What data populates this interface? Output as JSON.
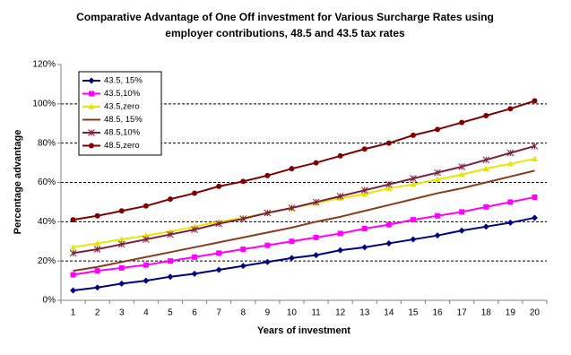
{
  "chart_data": {
    "type": "line",
    "title": [
      "Comparative Advantage of One Off investment for Various Surcharge Rates using",
      "employer contributions, 48.5 and 43.5 tax rates"
    ],
    "x_label": "Years of investment",
    "y_label": "Percentage advantage",
    "categories": [
      "1",
      "2",
      "3",
      "4",
      "5",
      "6",
      "7",
      "8",
      "9",
      "10",
      "11",
      "12",
      "13",
      "14",
      "15",
      "16",
      "17",
      "18",
      "19",
      "20"
    ],
    "ylim": [
      0,
      120
    ],
    "yticks": [
      {
        "value": 0,
        "label": "0%"
      },
      {
        "value": 20,
        "label": "20%"
      },
      {
        "value": 40,
        "label": "40%"
      },
      {
        "value": 60,
        "label": "60%"
      },
      {
        "value": 80,
        "label": "80%"
      },
      {
        "value": 100,
        "label": "100%"
      },
      {
        "value": 120,
        "label": "120%"
      }
    ],
    "grid": true,
    "legend": "top-left",
    "series": [
      {
        "name": "43.5, 15%",
        "color": "#000080",
        "marker": "diamond",
        "values": [
          5,
          6.5,
          8.5,
          10,
          12,
          13.5,
          15.5,
          17.5,
          19.5,
          21.5,
          23,
          25.5,
          27,
          29,
          31,
          33,
          35.5,
          37.5,
          39.5,
          42
        ]
      },
      {
        "name": "43.5,10%",
        "color": "#ff00ff",
        "marker": "square",
        "values": [
          13,
          15,
          16.5,
          18,
          20,
          22,
          24,
          26,
          28,
          30,
          32,
          34,
          36.5,
          38.5,
          41,
          43,
          45,
          47.5,
          50,
          52.5
        ]
      },
      {
        "name": "43.5,zero",
        "color": "#e6e600",
        "marker": "triangle",
        "values": [
          27,
          29,
          31,
          33,
          35,
          37.5,
          40,
          42,
          44.5,
          47,
          49.5,
          52,
          54,
          57,
          59,
          61.5,
          64,
          67,
          69.5,
          72
        ]
      },
      {
        "name": "48.5, 15%",
        "color": "#8b3a1a",
        "marker": "none",
        "values": [
          15,
          17,
          19.5,
          22,
          24.5,
          27,
          29.5,
          32,
          34.5,
          37,
          40,
          42.5,
          45.5,
          48.5,
          51.5,
          54.5,
          57,
          60,
          63,
          66
        ]
      },
      {
        "name": "48.5,10%",
        "color": "#7f1f3f",
        "marker": "x",
        "values": [
          24,
          26,
          28.5,
          31,
          33.5,
          36,
          39,
          41.5,
          44.5,
          47,
          50,
          53,
          56,
          59,
          62,
          65,
          68,
          71.5,
          75,
          78.5
        ]
      },
      {
        "name": "48.5,zero",
        "color": "#800000",
        "marker": "circle",
        "values": [
          41,
          43,
          45.5,
          48,
          51.5,
          54.5,
          58,
          60.5,
          63.5,
          67,
          70,
          73.5,
          77,
          80,
          84,
          87,
          90.5,
          94,
          97.5,
          101.5
        ]
      }
    ]
  }
}
